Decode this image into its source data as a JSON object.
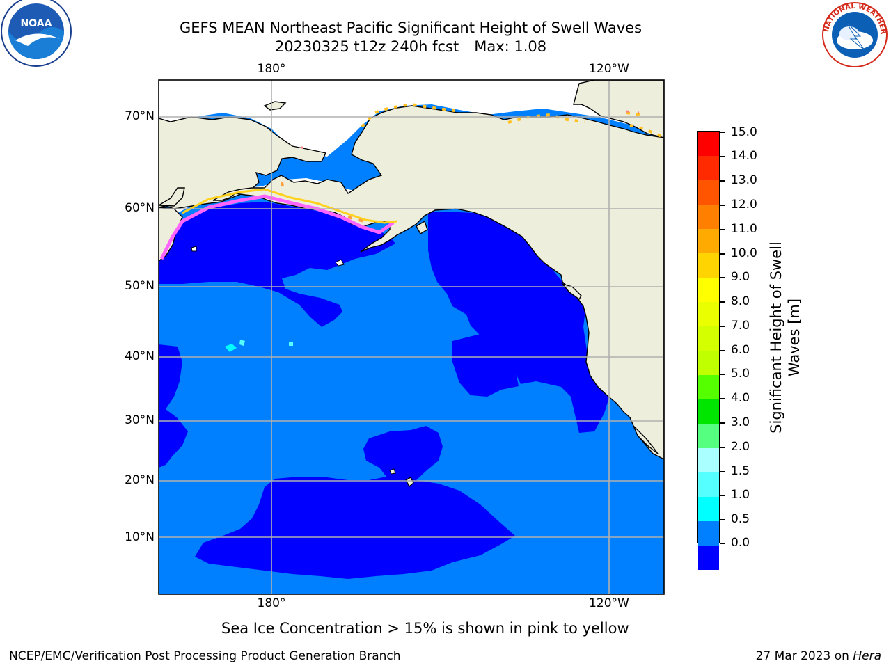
{
  "header": {
    "title_line1": "GEFS MEAN Northeast Pacific Significant Height of Swell Waves",
    "title_date": "20230325 t12z 240h fcst",
    "title_max": "Max: 1.08",
    "noaa_logo_text": "NOAA",
    "nws_logo_text": "NATIONAL WEATHER SERVICE"
  },
  "map": {
    "lat_labels": [
      "70°N",
      "60°N",
      "50°N",
      "40°N",
      "30°N",
      "20°N",
      "10°N"
    ],
    "lon_labels_top": [
      "180°",
      "120°W"
    ],
    "lon_labels_bottom": [
      "180°",
      "120°W"
    ],
    "colors": {
      "ocean_low": "#0000ff",
      "ocean_mid": "#0080ff",
      "land": "#eeeedc",
      "sea_ice_no_data": "#ffffff",
      "ice_pink": "#ff66ff",
      "ice_yellow": "#ffd21e",
      "grid": "#b0b0b0"
    }
  },
  "colorbar": {
    "title": "Significant Height of Swell Waves [m]",
    "tick_labels": [
      "15.0",
      "14.0",
      "13.0",
      "12.0",
      "11.0",
      "10.0",
      "9.0",
      "8.0",
      "7.0",
      "6.0",
      "5.0",
      "4.0",
      "3.0",
      "2.0",
      "1.5",
      "1.0",
      "0.5",
      "0.0"
    ],
    "colors_top_to_bottom": [
      "#ff0000",
      "#ff2a00",
      "#ff5500",
      "#ff8000",
      "#ffaa00",
      "#ffd400",
      "#ffff00",
      "#eaff00",
      "#d4ff00",
      "#bfff00",
      "#55ff00",
      "#00e600",
      "#55ff80",
      "#aaffff",
      "#55ffff",
      "#00ffff",
      "#0080ff",
      "#0000ff"
    ]
  },
  "note": "Sea Ice Concentration > 15% is shown in pink to yellow",
  "footer": {
    "left": "NCEP/EMC/Verification Post Processing Product Generation Branch",
    "right_prefix": "27 Mar 2023 on ",
    "right_machine": "Hera"
  }
}
